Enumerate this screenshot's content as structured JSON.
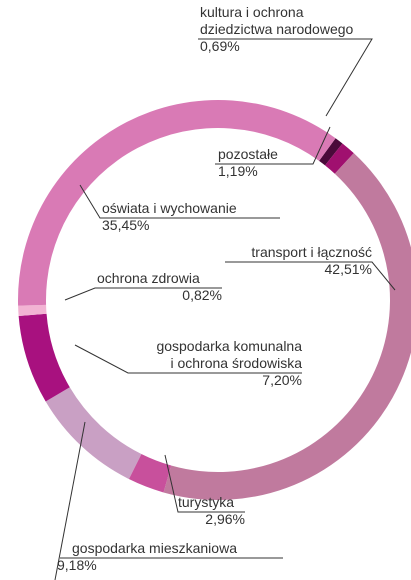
{
  "chart_data": {
    "type": "donut",
    "categories": [
      "kultura i ochrona dziedzictwa narodowego",
      "pozostałe",
      "transport i łączność",
      "turystyka",
      "gospodarka mieszkaniowa",
      "gospodarka komunalna i ochrona środowiska",
      "ochrona zdrowia",
      "oświata i wychowanie"
    ],
    "values": [
      0.69,
      1.19,
      42.51,
      2.96,
      9.18,
      7.2,
      0.82,
      35.45
    ],
    "value_labels": [
      "0,69%",
      "1,19%",
      "42,51%",
      "2,96%",
      "9,18%",
      "7,20%",
      "0,82%",
      "35,45%"
    ],
    "colors": [
      "#4a0a3a",
      "#a0106f",
      "#c07a9e",
      "#c8509c",
      "#c9a0c4",
      "#a8117f",
      "#f2b3d3",
      "#d97ab5"
    ]
  }
}
